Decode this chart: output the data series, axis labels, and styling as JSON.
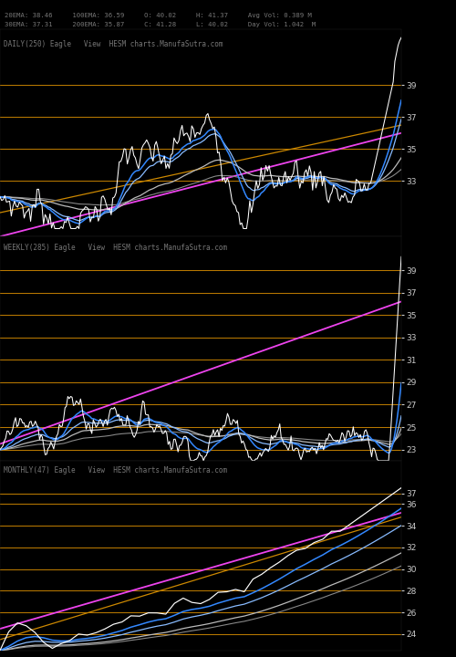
{
  "bg_color": "#000000",
  "panel1_label": "DAILY(250) Eagle   View  HESM charts.ManufaSutra.com",
  "panel2_label": "WEEKLY(285) Eagle   View  HESM charts.ManufaSutra.com",
  "panel3_label": "MONTHLY(47) Eagle   View  HESM charts.ManufaSutra.com",
  "header_line1": "20EMA: 38.46     100EMA: 36.59     O: 40.02     H: 41.37     Avg Vol: 0.389 M",
  "header_line2": "30EMA: 37.31     200EMA: 35.87     C: 41.28     L: 40.02     Day Vol: 1.042  M",
  "panel1_hlines": [
    33,
    35,
    37,
    39
  ],
  "panel2_hlines": [
    23,
    25,
    27,
    29,
    31,
    33,
    35,
    37,
    39
  ],
  "panel3_hlines": [
    24,
    26,
    28,
    30,
    32,
    34,
    36,
    37
  ],
  "hline_color": "#b87800",
  "price_color": "#ffffff",
  "ema_blue_color": "#3388ff",
  "ema_ltblue_color": "#88bbff",
  "ema_gray1_color": "#bbbbbb",
  "ema_gray2_color": "#888888",
  "ema_orange_color": "#cc8800",
  "trend_magenta_color": "#ee44ee",
  "tick_color": "#cccccc",
  "label_color": "#777777",
  "panel1_ylim": [
    29.5,
    42.5
  ],
  "panel2_ylim": [
    22.0,
    42.0
  ],
  "panel3_ylim": [
    22.5,
    40.0
  ]
}
